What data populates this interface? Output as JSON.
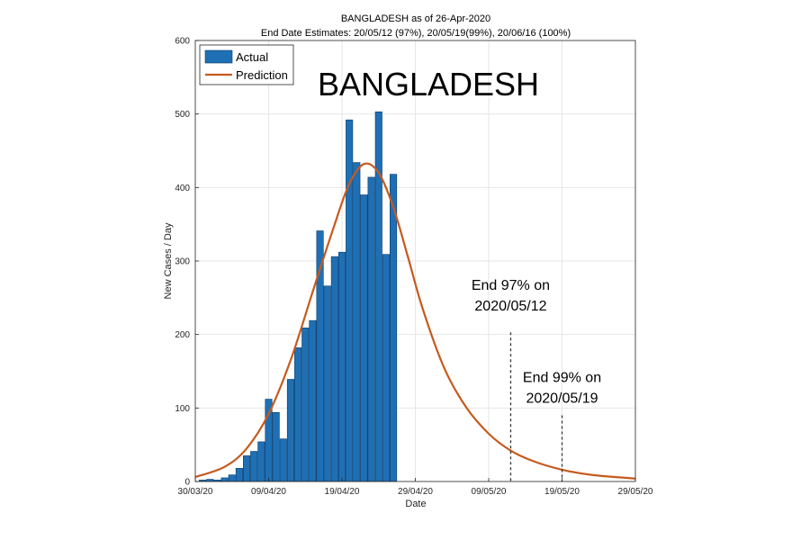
{
  "chart_data": {
    "type": "bar",
    "title": "BANGLADESH as of 26-Apr-2020",
    "subtitle": "End Date Estimates: 20/05/12 (97%), 20/05/19(99%), 20/06/16 (100%)",
    "xlabel": "Date",
    "ylabel": "New Cases / Day",
    "watermark_label": "BANGLADESH",
    "x_tick_labels": [
      "30/03/20",
      "09/04/20",
      "19/04/20",
      "29/04/20",
      "09/05/20",
      "19/05/20",
      "29/05/20"
    ],
    "xlim": [
      "2020-03-30",
      "2020-05-29"
    ],
    "ylim": [
      0,
      600
    ],
    "y_ticks": [
      0,
      100,
      200,
      300,
      400,
      500,
      600
    ],
    "grid": true,
    "legend_position": "top-left",
    "colors": {
      "actual": "#1f6fb4",
      "actual_edge": "#0b3d6b",
      "prediction": "#c65a1e",
      "grid": "#e6e6e6"
    },
    "series": [
      {
        "name": "Actual",
        "type": "bar",
        "x": [
          "2020-03-31",
          "2020-04-01",
          "2020-04-02",
          "2020-04-03",
          "2020-04-04",
          "2020-04-05",
          "2020-04-06",
          "2020-04-07",
          "2020-04-08",
          "2020-04-09",
          "2020-04-10",
          "2020-04-11",
          "2020-04-12",
          "2020-04-13",
          "2020-04-14",
          "2020-04-15",
          "2020-04-16",
          "2020-04-17",
          "2020-04-18",
          "2020-04-19",
          "2020-04-20",
          "2020-04-21",
          "2020-04-22",
          "2020-04-23",
          "2020-04-24",
          "2020-04-25",
          "2020-04-26"
        ],
        "values": [
          2,
          3,
          2,
          5,
          9,
          18,
          35,
          41,
          54,
          112,
          94,
          58,
          139,
          182,
          209,
          219,
          341,
          266,
          306,
          312,
          492,
          434,
          390,
          414,
          503,
          309,
          418
        ]
      },
      {
        "name": "Prediction",
        "type": "line",
        "x": [
          "2020-03-30",
          "2020-04-03",
          "2020-04-06",
          "2020-04-09",
          "2020-04-12",
          "2020-04-15",
          "2020-04-18",
          "2020-04-20",
          "2020-04-22",
          "2020-04-24",
          "2020-04-26",
          "2020-04-28",
          "2020-04-30",
          "2020-05-03",
          "2020-05-06",
          "2020-05-09",
          "2020-05-12",
          "2020-05-15",
          "2020-05-19",
          "2020-05-23",
          "2020-05-29"
        ],
        "values": [
          6,
          20,
          45,
          92,
          165,
          258,
          350,
          405,
          432,
          420,
          373,
          305,
          235,
          153,
          100,
          65,
          42,
          28,
          16,
          9,
          4
        ]
      }
    ],
    "annotations": [
      {
        "date": "2020-05-12",
        "line1": "End 97% on",
        "line2": "2020/05/12",
        "line_top": 203
      },
      {
        "date": "2020-05-19",
        "line1": "End 99% on",
        "line2": "2020/05/19",
        "line_top": 90
      }
    ]
  }
}
